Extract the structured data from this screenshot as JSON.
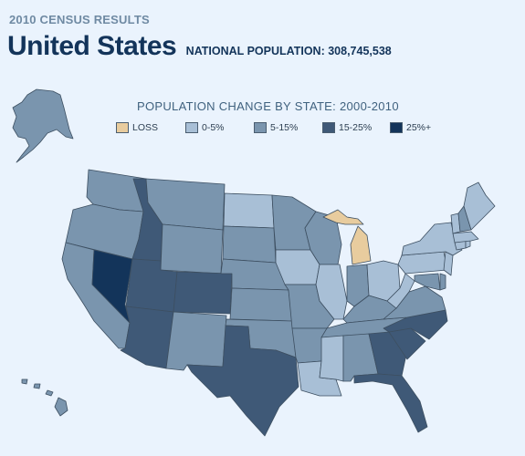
{
  "header": {
    "eyebrow": "2010 CENSUS RESULTS",
    "title": "United States",
    "population_label": "NATIONAL POPULATION: 308,745,538"
  },
  "map": {
    "title": "POPULATION CHANGE BY STATE: 2000-2010",
    "legend": [
      {
        "label": "LOSS",
        "color": "#e8cc9e"
      },
      {
        "label": "0-5%",
        "color": "#a8bfd6"
      },
      {
        "label": "5-15%",
        "color": "#7a95ae"
      },
      {
        "label": "15-25%",
        "color": "#3f5977"
      },
      {
        "label": "25%+",
        "color": "#13345a"
      }
    ],
    "categories": {
      "WA": "5-15%",
      "OR": "5-15%",
      "CA": "5-15%",
      "NV": "25%+",
      "ID": "15-25%",
      "MT": "5-15%",
      "WY": "5-15%",
      "UT": "15-25%",
      "AZ": "15-25%",
      "CO": "15-25%",
      "NM": "5-15%",
      "ND": "0-5%",
      "SD": "5-15%",
      "NE": "5-15%",
      "KS": "5-15%",
      "OK": "5-15%",
      "TX": "15-25%",
      "MN": "5-15%",
      "IA": "0-5%",
      "MO": "5-15%",
      "AR": "5-15%",
      "LA": "0-5%",
      "WI": "5-15%",
      "IL": "0-5%",
      "MI": "LOSS",
      "IN": "5-15%",
      "OH": "0-5%",
      "KY": "5-15%",
      "TN": "5-15%",
      "MS": "0-5%",
      "AL": "5-15%",
      "GA": "15-25%",
      "FL": "15-25%",
      "SC": "15-25%",
      "NC": "15-25%",
      "VA": "5-15%",
      "WV": "0-5%",
      "PA": "0-5%",
      "NY": "0-5%",
      "VT": "0-5%",
      "NH": "5-15%",
      "ME": "0-5%",
      "MA": "0-5%",
      "RI": "0-5%",
      "CT": "0-5%",
      "NJ": "0-5%",
      "DE": "5-15%",
      "MD": "5-15%",
      "AK": "5-15%",
      "HI": "5-15%"
    }
  }
}
